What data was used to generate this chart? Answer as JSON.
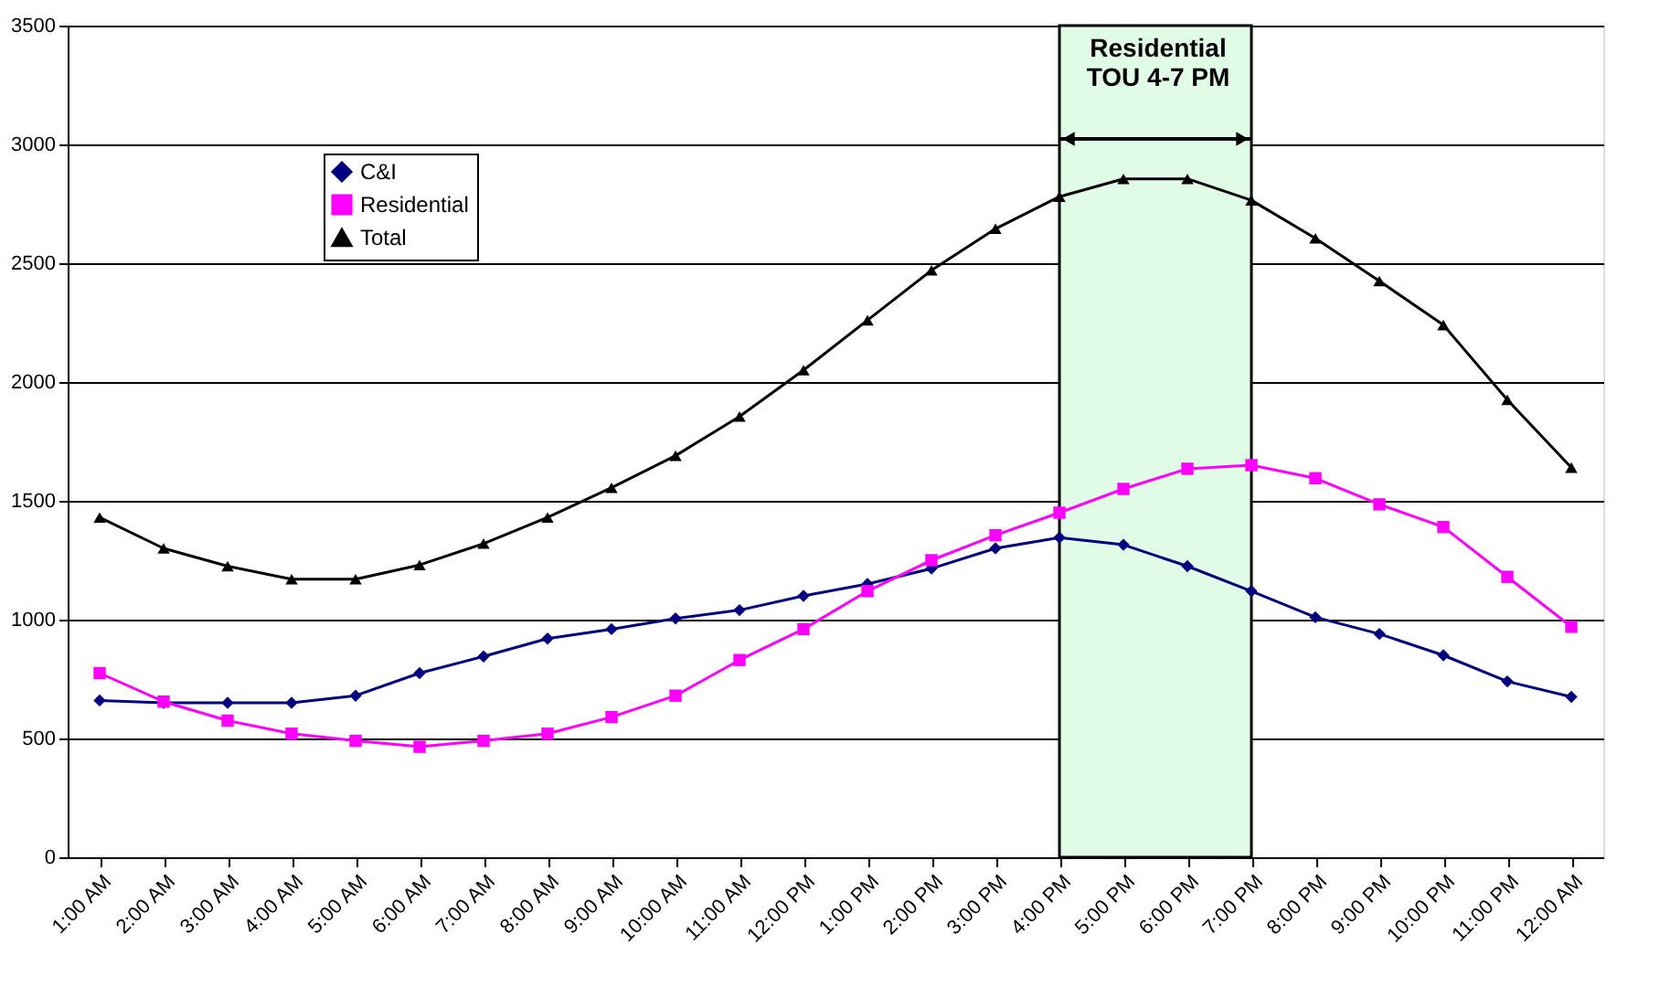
{
  "chart_data": {
    "type": "line",
    "categories": [
      "1:00 AM",
      "2:00 AM",
      "3:00 AM",
      "4:00 AM",
      "5:00 AM",
      "6:00 AM",
      "7:00 AM",
      "8:00 AM",
      "9:00 AM",
      "10:00 AM",
      "11:00 AM",
      "12:00 PM",
      "1:00 PM",
      "2:00 PM",
      "3:00 PM",
      "4:00 PM",
      "5:00 PM",
      "6:00 PM",
      "7:00 PM",
      "8:00 PM",
      "9:00 PM",
      "10:00 PM",
      "11:00 PM",
      "12:00 AM"
    ],
    "series": [
      {
        "name": "C&I",
        "color": "#000080",
        "marker": "diamond",
        "values": [
          660,
          650,
          650,
          650,
          680,
          775,
          845,
          920,
          960,
          1005,
          1040,
          1100,
          1150,
          1215,
          1300,
          1345,
          1315,
          1225,
          1120,
          1010,
          940,
          850,
          740,
          675
        ]
      },
      {
        "name": "Residential",
        "color": "#ff00ff",
        "marker": "square",
        "values": [
          775,
          655,
          575,
          520,
          490,
          465,
          490,
          520,
          590,
          680,
          830,
          960,
          1120,
          1250,
          1355,
          1450,
          1550,
          1635,
          1650,
          1595,
          1485,
          1390,
          1180,
          970
        ]
      },
      {
        "name": "Total",
        "color": "#000000",
        "marker": "triangle",
        "values": [
          1430,
          1300,
          1225,
          1170,
          1170,
          1230,
          1320,
          1430,
          1555,
          1690,
          1855,
          2050,
          2260,
          2470,
          2645,
          2780,
          2855,
          2855,
          2765,
          2605,
          2425,
          2240,
          1925,
          1640
        ]
      }
    ],
    "ylim": [
      0,
      3500
    ],
    "yticks": [
      0,
      500,
      1000,
      1500,
      2000,
      2500,
      3000,
      3500
    ],
    "bands": [
      {
        "axis": "x",
        "from": "4:00 PM",
        "to": "7:00 PM",
        "label": "Residential\nTOU 4-7 PM",
        "color": "#e0fbe6"
      }
    ],
    "grid": "y",
    "legend": "top left",
    "line_style": "solid"
  }
}
